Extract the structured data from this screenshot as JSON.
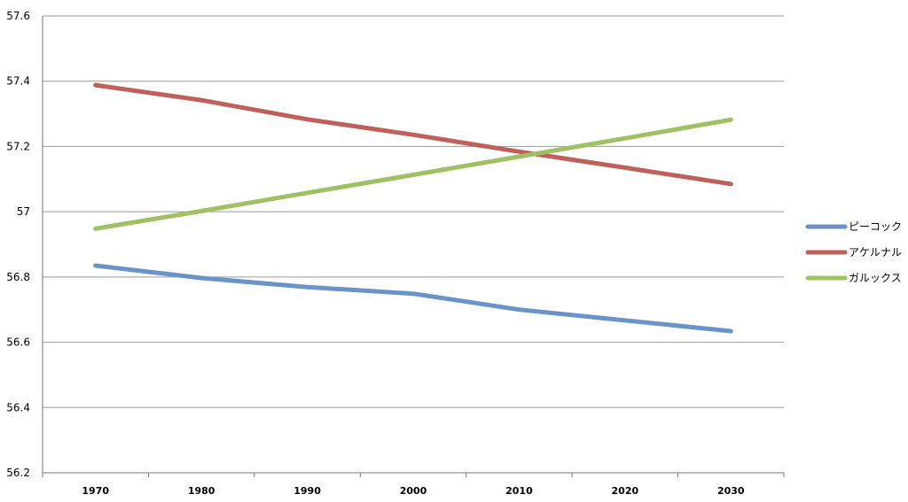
{
  "chart_data": {
    "type": "line",
    "title": "",
    "xlabel": "",
    "ylabel": "",
    "categories": [
      "1970",
      "1980",
      "1990",
      "2000",
      "2010",
      "2020",
      "2030"
    ],
    "ylim": [
      56.2,
      57.6
    ],
    "yticks": [
      "56.2",
      "56.4",
      "56.6",
      "56.8",
      "57",
      "57.2",
      "57.4",
      "57.6"
    ],
    "grid": true,
    "legend_position": "right",
    "series": [
      {
        "name": "ピーコック",
        "color": "#6a93c8",
        "values": [
          56.835,
          56.797,
          56.769,
          56.749,
          56.7,
          56.667,
          56.634
        ]
      },
      {
        "name": "アケルナル",
        "color": "#c0605a",
        "values": [
          57.388,
          57.342,
          57.283,
          57.236,
          57.184,
          57.135,
          57.085
        ]
      },
      {
        "name": "ガルックス",
        "color": "#9fc063",
        "values": [
          56.948,
          57.002,
          57.058,
          57.113,
          57.169,
          57.225,
          57.282
        ]
      }
    ]
  }
}
